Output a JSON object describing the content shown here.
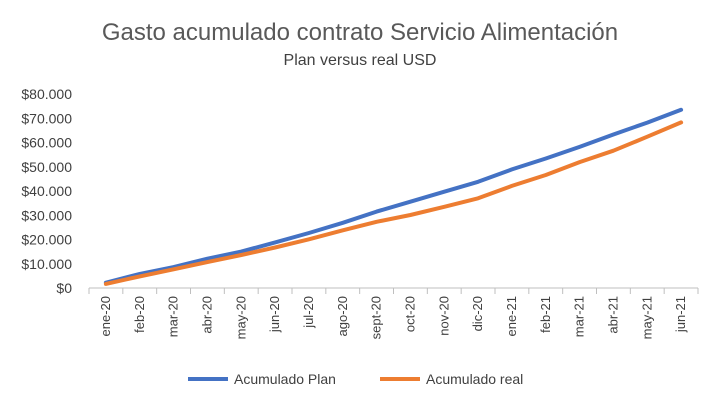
{
  "chart_data": {
    "type": "line",
    "title": "Gasto acumulado contrato Servicio Alimentación",
    "subtitle": "Plan versus real USD",
    "categories": [
      "ene-20",
      "feb-20",
      "mar-20",
      "abr-20",
      "may-20",
      "jun-20",
      "jul-20",
      "ago-20",
      "sept-20",
      "oct-20",
      "nov-20",
      "dic-20",
      "ene-21",
      "feb-21",
      "mar-21",
      "abr-21",
      "may-21",
      "jun-21"
    ],
    "y_ticks": [
      "$0",
      "$10.000",
      "$20.000",
      "$30.000",
      "$40.000",
      "$50.000",
      "$60.000",
      "$70.000",
      "$80.000"
    ],
    "ylim": [
      0,
      80000
    ],
    "grid": false,
    "legend_position": "bottom",
    "series": [
      {
        "name": "Acumulado Plan",
        "color": "#4472C4",
        "values": [
          2200,
          5800,
          8600,
          12100,
          15000,
          18800,
          22700,
          26900,
          31500,
          35600,
          39700,
          43800,
          48900,
          53400,
          58200,
          63300,
          68200,
          73500
        ]
      },
      {
        "name": "Acumulado real",
        "color": "#ED7D31",
        "values": [
          1700,
          4800,
          7700,
          10700,
          13600,
          16700,
          20100,
          23800,
          27300,
          30100,
          33500,
          37000,
          42100,
          46600,
          51900,
          56600,
          62400,
          68300
        ]
      }
    ]
  }
}
